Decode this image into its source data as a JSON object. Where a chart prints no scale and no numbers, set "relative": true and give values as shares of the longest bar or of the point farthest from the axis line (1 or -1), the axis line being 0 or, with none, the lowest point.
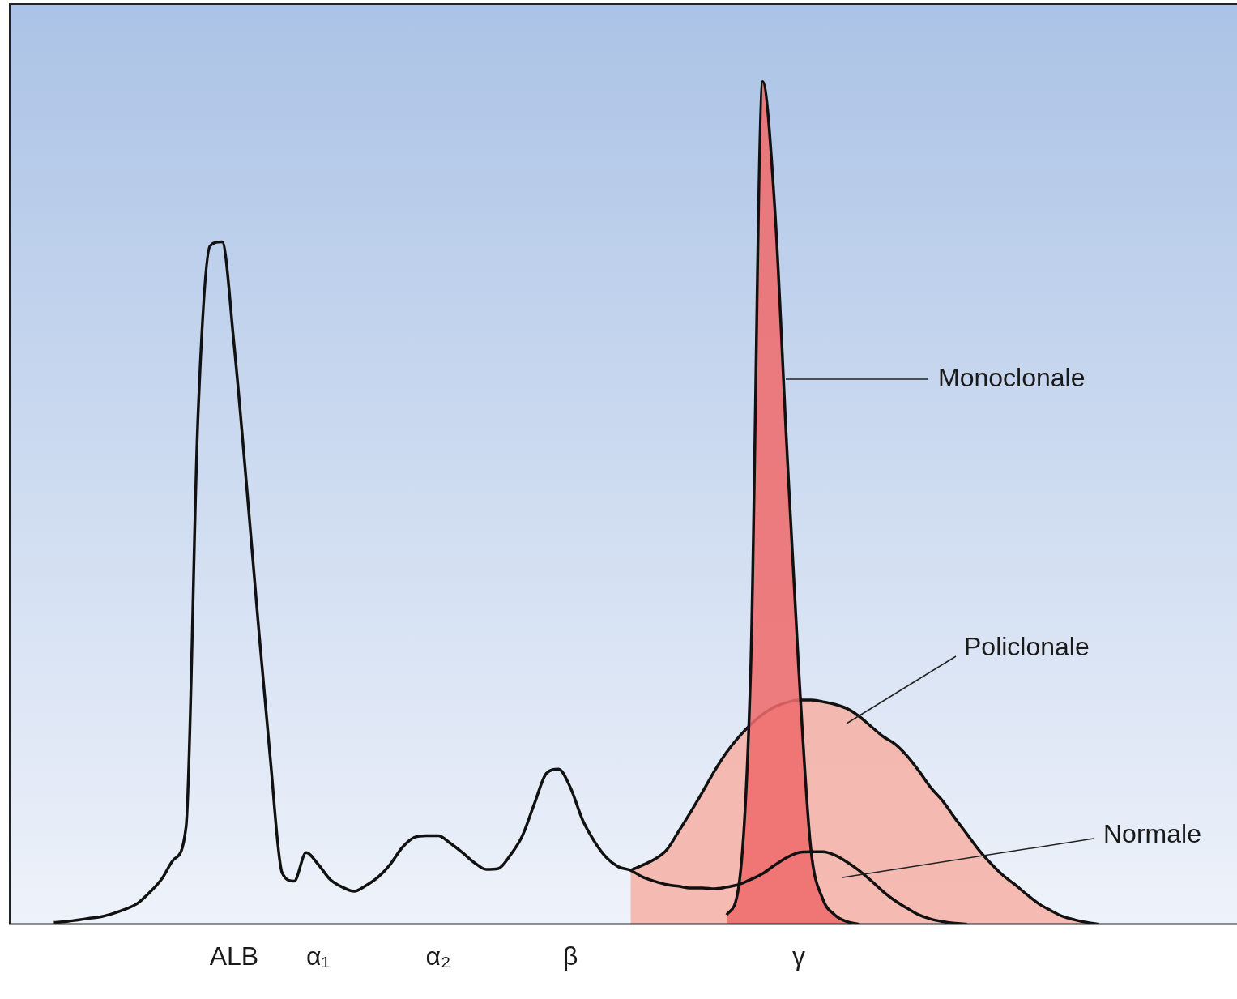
{
  "chart_data": {
    "type": "line",
    "relative": true,
    "legend": false,
    "categories": [
      null,
      null,
      null,
      null,
      null,
      null,
      null,
      null,
      null,
      null,
      null,
      null,
      null,
      null,
      null,
      null,
      null,
      null,
      "ALB",
      null,
      null,
      null,
      null,
      null,
      null,
      "α₁",
      null,
      null,
      null,
      null,
      null,
      null,
      null,
      null,
      null,
      "α₂",
      null,
      null,
      null,
      null,
      null,
      null,
      null,
      null,
      null,
      null,
      "β",
      null,
      null,
      null,
      null,
      null,
      null,
      null,
      null,
      null,
      null,
      null,
      null,
      null,
      null,
      null,
      null,
      null,
      null,
      "γ",
      null,
      null,
      null,
      null,
      null,
      null,
      null,
      null,
      null,
      null,
      null,
      null,
      null,
      null,
      null,
      null,
      null,
      null,
      null,
      null,
      null,
      null,
      null,
      null,
      null,
      null,
      null,
      null,
      null,
      null,
      null,
      null,
      null,
      null,
      null
    ],
    "series": [
      {
        "name": "Normale",
        "type": "line",
        "color": "#111111",
        "values": [
          null,
          null,
          null,
          0.002,
          0.003,
          0.005,
          0.007,
          0.009,
          0.013,
          0.018,
          0.025,
          0.038,
          0.054,
          0.077,
          0.115,
          0.603,
          0.805,
          0.81,
          0.688,
          0.528,
          0.359,
          0.199,
          0.061,
          0.051,
          0.085,
          0.071,
          0.053,
          0.044,
          0.039,
          0.046,
          0.056,
          0.071,
          0.091,
          0.103,
          0.105,
          0.105,
          0.096,
          0.085,
          0.073,
          0.065,
          0.066,
          0.082,
          0.105,
          0.143,
          0.179,
          0.184,
          0.162,
          0.124,
          0.098,
          0.079,
          0.068,
          0.064,
          0.056,
          0.051,
          0.047,
          0.045,
          0.043,
          0.043,
          0.042,
          0.044,
          0.047,
          0.053,
          0.06,
          0.07,
          0.079,
          0.085,
          0.086,
          0.086,
          0.082,
          0.074,
          0.064,
          0.052,
          0.039,
          0.028,
          0.019,
          0.011,
          0.006,
          0.003,
          0.001,
          0,
          null,
          null,
          null,
          null,
          null,
          null,
          null,
          null,
          null,
          null,
          null,
          null,
          null,
          null,
          null,
          null,
          null,
          null,
          null,
          null,
          null
        ]
      },
      {
        "name": "Policlonale",
        "type": "area",
        "color": "#f6b2a6",
        "values": [
          null,
          null,
          null,
          null,
          null,
          null,
          null,
          null,
          null,
          null,
          null,
          null,
          null,
          null,
          null,
          null,
          null,
          null,
          null,
          null,
          null,
          null,
          null,
          null,
          null,
          null,
          null,
          null,
          null,
          null,
          null,
          null,
          null,
          null,
          null,
          null,
          null,
          null,
          null,
          null,
          null,
          null,
          null,
          null,
          null,
          null,
          null,
          null,
          null,
          null,
          null,
          0.064,
          0.07,
          0.077,
          0.088,
          0.11,
          0.133,
          0.157,
          0.182,
          0.204,
          0.222,
          0.237,
          0.249,
          0.258,
          0.263,
          0.266,
          0.266,
          0.264,
          0.261,
          0.256,
          0.247,
          0.235,
          0.223,
          0.214,
          0.2,
          0.182,
          0.162,
          0.146,
          0.126,
          0.107,
          0.088,
          0.072,
          0.058,
          0.047,
          0.035,
          0.024,
          0.016,
          0.009,
          0.005,
          0.002,
          0,
          null,
          null,
          null,
          null,
          null,
          null,
          null,
          null,
          null,
          null
        ]
      },
      {
        "name": "Monoclonale",
        "type": "area",
        "color": "#ef6b6b",
        "values": [
          null,
          null,
          null,
          null,
          null,
          null,
          null,
          null,
          null,
          null,
          null,
          null,
          null,
          null,
          null,
          null,
          null,
          null,
          null,
          null,
          null,
          null,
          null,
          null,
          null,
          null,
          null,
          null,
          null,
          null,
          null,
          null,
          null,
          null,
          null,
          null,
          null,
          null,
          null,
          null,
          null,
          null,
          null,
          null,
          null,
          null,
          null,
          null,
          null,
          null,
          null,
          null,
          null,
          null,
          null,
          null,
          null,
          null,
          null,
          0.011,
          0.044,
          0.3,
          1,
          0.852,
          0.569,
          0.303,
          0.091,
          0.03,
          0.011,
          0.003,
          0,
          null,
          null,
          null,
          null,
          null,
          null,
          null,
          null,
          null,
          null,
          null,
          null,
          null,
          null,
          null,
          null,
          null,
          null,
          null,
          null,
          null,
          null,
          null,
          null,
          null,
          null,
          null,
          null,
          null,
          null
        ]
      }
    ]
  }
}
